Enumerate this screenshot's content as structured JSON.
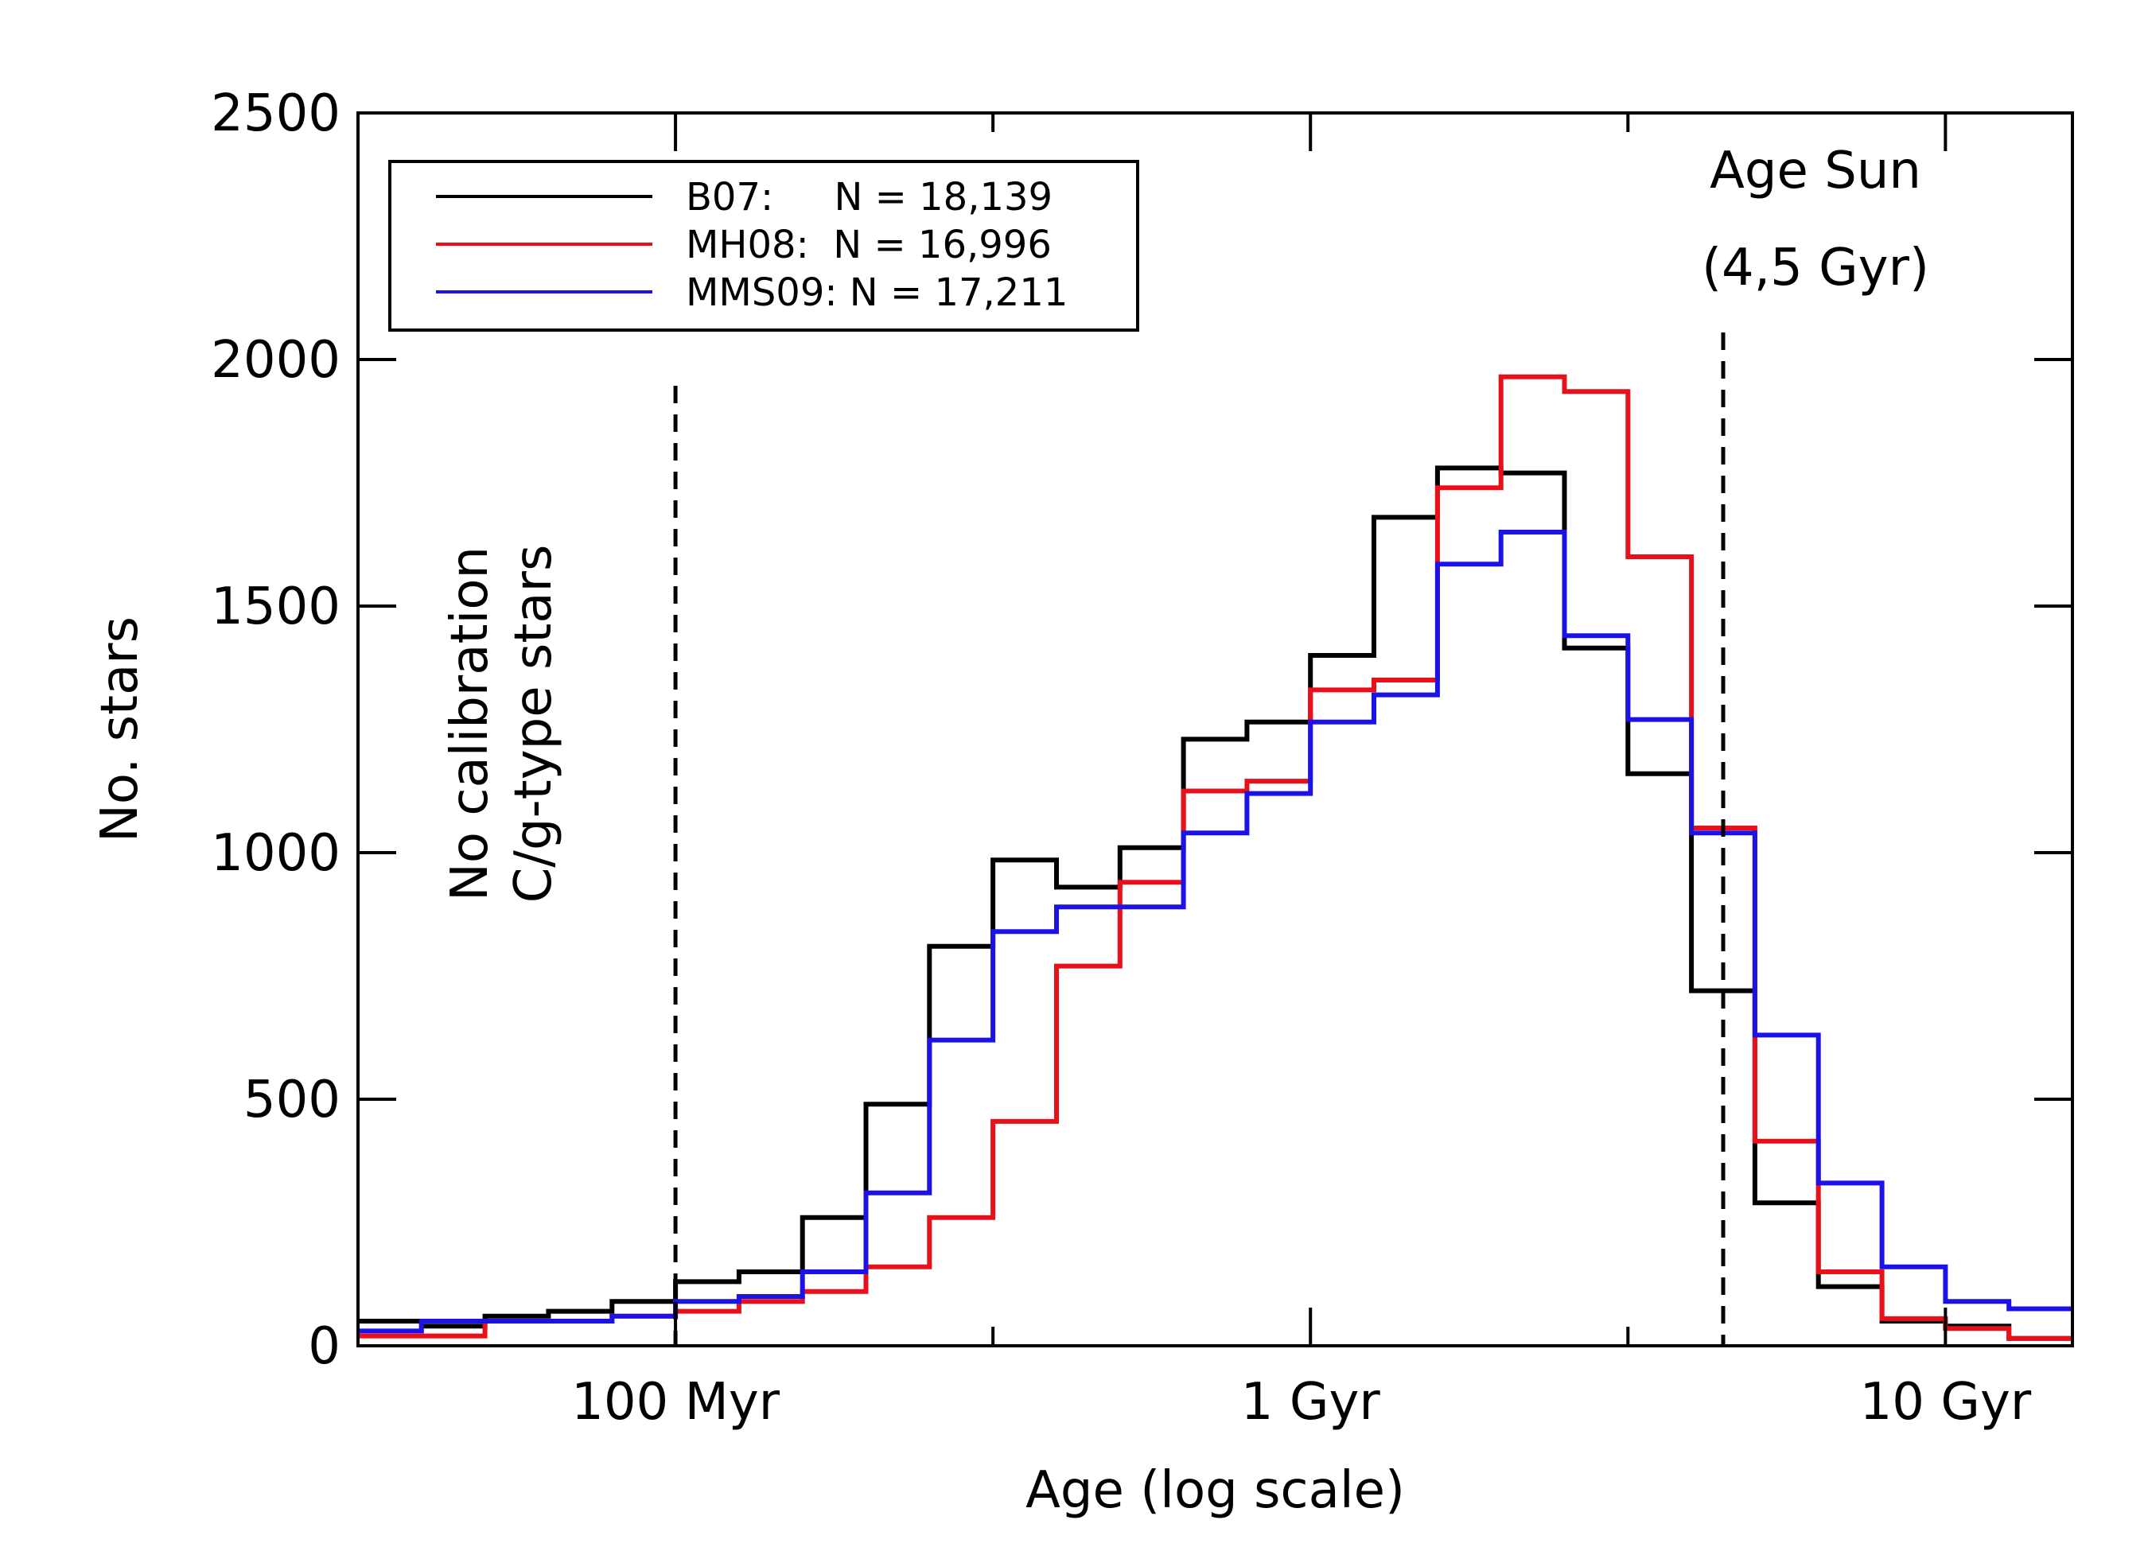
{
  "chart_data": {
    "type": "histogram-step",
    "title": "",
    "xlabel": "Age (log scale)",
    "ylabel": "No. stars",
    "x_scale": "log10 (years)",
    "xlim_log10_years": [
      7.5,
      10.2
    ],
    "ylim": [
      0,
      2500
    ],
    "yticks": [
      0,
      500,
      1000,
      1500,
      2000,
      2500
    ],
    "ytick_labels": [
      "0",
      "500",
      "1000",
      "1500",
      "2000",
      "2500"
    ],
    "xticks_log10": [
      8.0,
      9.0,
      10.0
    ],
    "xtick_labels": [
      "100 Myr",
      "1 Gyr",
      "10 Gyr"
    ],
    "minor_xticks_log10": [
      8.5,
      9.5
    ],
    "bin_edges_log10": [
      7.5,
      7.6,
      7.7,
      7.8,
      7.9,
      8.0,
      8.1,
      8.2,
      8.3,
      8.4,
      8.5,
      8.6,
      8.7,
      8.8,
      8.9,
      9.0,
      9.1,
      9.2,
      9.3,
      9.4,
      9.5,
      9.6,
      9.7,
      9.8,
      9.9,
      10.0,
      10.1,
      10.2
    ],
    "series": [
      {
        "name": "B07",
        "legend_label": "B07:     N = 18,139",
        "color": "#000000",
        "values": [
          50,
          40,
          60,
          70,
          90,
          130,
          150,
          260,
          490,
          810,
          985,
          930,
          1010,
          1230,
          1265,
          1400,
          1680,
          1780,
          1770,
          1415,
          1160,
          720,
          290,
          120,
          50,
          40,
          15
        ]
      },
      {
        "name": "MH08",
        "legend_label": "MH08:  N = 16,996",
        "color": "#e8111b",
        "values": [
          20,
          20,
          50,
          50,
          60,
          70,
          90,
          110,
          160,
          260,
          455,
          770,
          940,
          1125,
          1145,
          1330,
          1350,
          1740,
          1965,
          1935,
          1600,
          1050,
          415,
          150,
          55,
          35,
          15
        ]
      },
      {
        "name": "MMS09",
        "legend_label": "MMS09: N = 17,211",
        "color": "#1c12e6",
        "values": [
          30,
          50,
          50,
          50,
          60,
          90,
          100,
          150,
          310,
          620,
          840,
          890,
          890,
          1040,
          1120,
          1265,
          1320,
          1585,
          1650,
          1440,
          1270,
          1040,
          630,
          330,
          160,
          90,
          75
        ]
      }
    ],
    "legend_position": "top-left",
    "vertical_lines": [
      {
        "name": "calibration-limit-line",
        "x_log10": 8.0,
        "style": "dashed"
      },
      {
        "name": "age-sun-line",
        "x_log10": 9.65,
        "style": "dashed"
      }
    ],
    "annotations": {
      "no_calibration_line1": "No calibration",
      "no_calibration_line2": "C/g-type stars",
      "age_sun_line1": "Age Sun",
      "age_sun_line2": "(4,5 Gyr)"
    }
  }
}
